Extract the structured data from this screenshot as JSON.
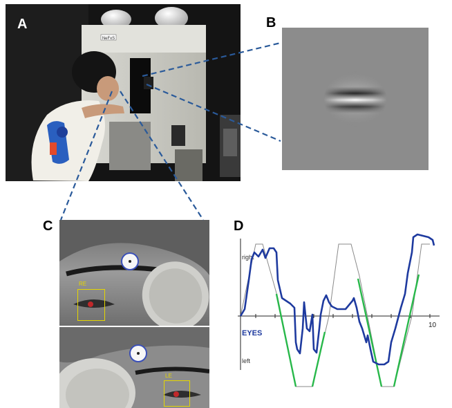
{
  "panels": {
    "a": {
      "letter": "A",
      "device_label": "NeFxS"
    },
    "b": {
      "letter": "B"
    },
    "c": {
      "letter": "C",
      "right_eye_label": "RE",
      "left_eye_label": "LE"
    },
    "d": {
      "letter": "D",
      "label_top": "right",
      "label_bottom": "left",
      "label_eyes": "EYES",
      "tick_label": "10"
    }
  },
  "colors": {
    "dash_line": "#2a5a9a",
    "trace": "#1e3a9f",
    "target_green": "#28b84a",
    "target_gray": "#8a8a8a",
    "box_yellow": "#e5d600",
    "pupil_red": "#c0282a",
    "marker_blue": "#3a4fb8"
  },
  "chart_data": {
    "type": "line",
    "xlabel": "",
    "ylabel": "",
    "x_tick_labels": [
      "10"
    ],
    "series": [
      {
        "values": []
      },
      {
        "values": []
      }
    ]
  }
}
